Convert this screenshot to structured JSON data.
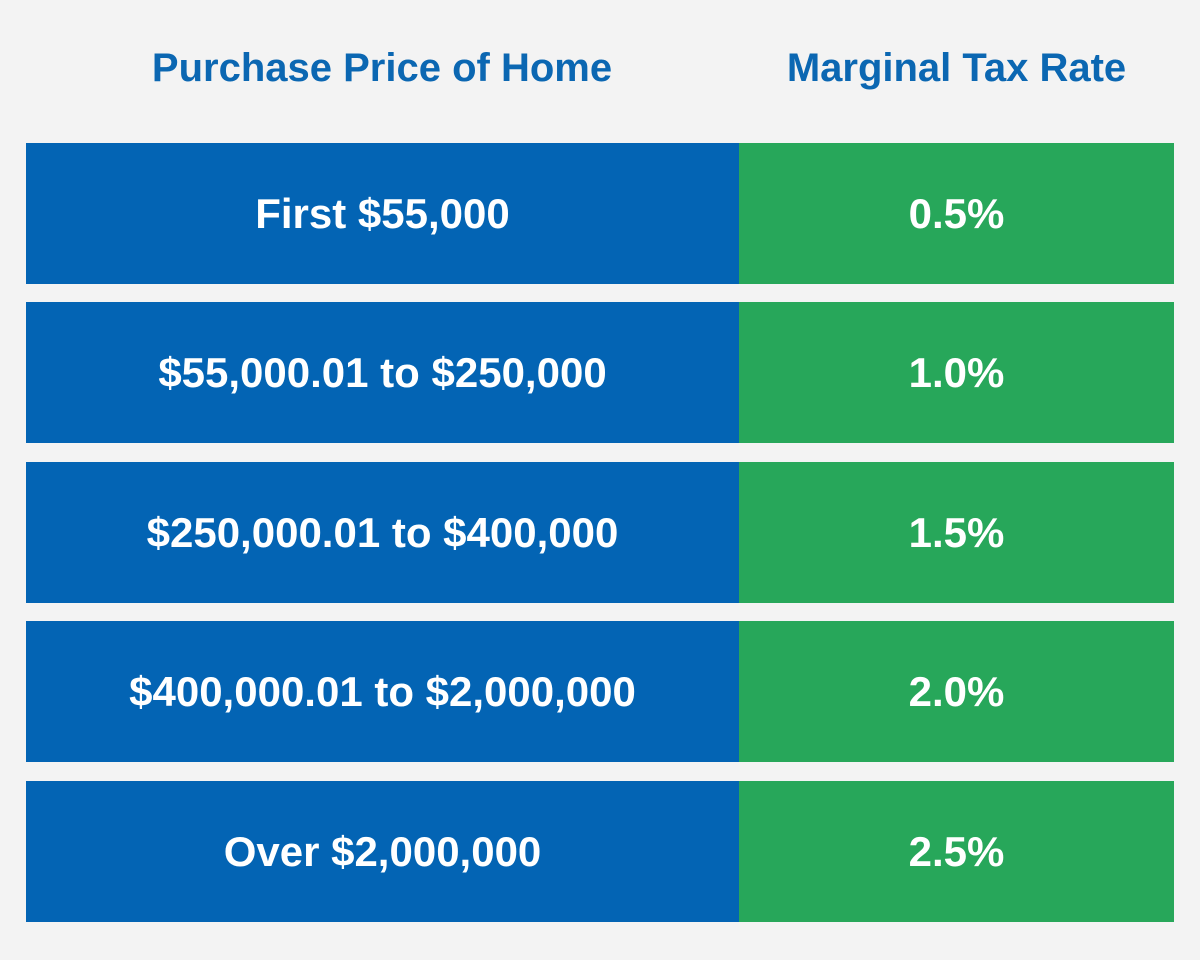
{
  "header": {
    "price_label": "Purchase Price of Home",
    "rate_label": "Marginal Tax Rate"
  },
  "rows": [
    {
      "price": "First $55,000",
      "rate": "0.5%"
    },
    {
      "price": "$55,000.01 to $250,000",
      "rate": "1.0%"
    },
    {
      "price": "$250,000.01 to $400,000",
      "rate": "1.5%"
    },
    {
      "price": "$400,000.01 to $2,000,000",
      "rate": "2.0%"
    },
    {
      "price": "Over $2,000,000",
      "rate": "2.5%"
    }
  ],
  "colors": {
    "header_text": "#0b67b2",
    "price_cell": "#0364b4",
    "rate_cell": "#27a75a",
    "background": "#f3f3f3"
  }
}
